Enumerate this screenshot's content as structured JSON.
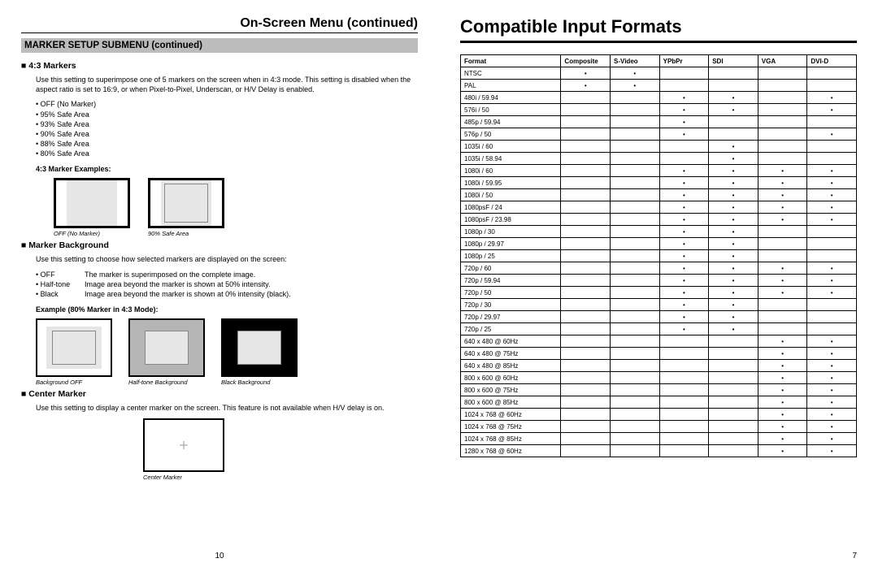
{
  "left": {
    "heading": "On-Screen Menu (continued)",
    "grey_bar": "MARKER SETUP SUBMENU (continued)",
    "s1": {
      "title": "4:3 Markers",
      "desc": "Use this setting to superimpose one of 5 markers on the screen when in 4:3 mode. This setting is disabled when the aspect ratio is set to 16:9, or when Pixel-to-Pixel, Underscan, or H/V Delay is enabled.",
      "opts": [
        "OFF (No Marker)",
        "95% Safe Area",
        "93% Safe Area",
        "90% Safe Area",
        "88% Safe Area",
        "80% Safe Area"
      ],
      "ex_label": "4:3 Marker Examples:",
      "ex": [
        "OFF (No Marker)",
        "90% Safe Area"
      ]
    },
    "s2": {
      "title": "Marker Background",
      "desc": "Use this setting to choose how selected markers are displayed on the screen:",
      "defs": [
        {
          "k": "OFF",
          "v": "The marker is superimposed on the complete image."
        },
        {
          "k": "Half-tone",
          "v": "Image area beyond the marker is shown at 50% intensity."
        },
        {
          "k": "Black",
          "v": "Image area beyond the marker is shown at 0% intensity (black)."
        }
      ],
      "ex_label": "Example (80% Marker in 4:3 Mode):",
      "ex": [
        "Background OFF",
        "Half-tone Background",
        "Black Background"
      ]
    },
    "s3": {
      "title": "Center Marker",
      "desc": "Use this setting to display a center marker on the screen. This feature is not available when H/V delay is on.",
      "cap": "Center Marker"
    },
    "page": "10"
  },
  "right": {
    "heading": "Compatible Input Formats",
    "headers": [
      "Format",
      "Composite",
      "S-Video",
      "YPbPr",
      "SDI",
      "VGA",
      "DVI-D"
    ],
    "rows": [
      {
        "f": "NTSC",
        "c": [
          1,
          1,
          0,
          0,
          0,
          0
        ]
      },
      {
        "f": "PAL",
        "c": [
          1,
          1,
          0,
          0,
          0,
          0
        ]
      },
      {
        "f": "480i / 59.94",
        "c": [
          0,
          0,
          1,
          1,
          0,
          1
        ]
      },
      {
        "f": "576i / 50",
        "c": [
          0,
          0,
          1,
          1,
          0,
          1
        ]
      },
      {
        "f": "485p / 59.94",
        "c": [
          0,
          0,
          1,
          0,
          0,
          0
        ]
      },
      {
        "f": "576p / 50",
        "c": [
          0,
          0,
          1,
          0,
          0,
          1
        ]
      },
      {
        "f": "1035i / 60",
        "c": [
          0,
          0,
          0,
          1,
          0,
          0
        ]
      },
      {
        "f": "1035i / 58.94",
        "c": [
          0,
          0,
          0,
          1,
          0,
          0
        ]
      },
      {
        "f": "1080i / 60",
        "c": [
          0,
          0,
          1,
          1,
          1,
          1
        ]
      },
      {
        "f": "1080i / 59.95",
        "c": [
          0,
          0,
          1,
          1,
          1,
          1
        ]
      },
      {
        "f": "1080i / 50",
        "c": [
          0,
          0,
          1,
          1,
          1,
          1
        ]
      },
      {
        "f": "1080psF / 24",
        "c": [
          0,
          0,
          1,
          1,
          1,
          1
        ]
      },
      {
        "f": "1080psF / 23.98",
        "c": [
          0,
          0,
          1,
          1,
          1,
          1
        ]
      },
      {
        "f": "1080p / 30",
        "c": [
          0,
          0,
          1,
          1,
          0,
          0
        ]
      },
      {
        "f": "1080p / 29.97",
        "c": [
          0,
          0,
          1,
          1,
          0,
          0
        ]
      },
      {
        "f": "1080p / 25",
        "c": [
          0,
          0,
          1,
          1,
          0,
          0
        ]
      },
      {
        "f": "720p / 60",
        "c": [
          0,
          0,
          1,
          1,
          1,
          1
        ]
      },
      {
        "f": "720p / 59.94",
        "c": [
          0,
          0,
          1,
          1,
          1,
          1
        ]
      },
      {
        "f": "720p / 50",
        "c": [
          0,
          0,
          1,
          1,
          1,
          1
        ]
      },
      {
        "f": "720p / 30",
        "c": [
          0,
          0,
          1,
          1,
          0,
          0
        ]
      },
      {
        "f": "720p / 29.97",
        "c": [
          0,
          0,
          1,
          1,
          0,
          0
        ]
      },
      {
        "f": "720p / 25",
        "c": [
          0,
          0,
          1,
          1,
          0,
          0
        ]
      },
      {
        "f": "640 x 480 @ 60Hz",
        "c": [
          0,
          0,
          0,
          0,
          1,
          1
        ]
      },
      {
        "f": "640 x 480 @ 75Hz",
        "c": [
          0,
          0,
          0,
          0,
          1,
          1
        ]
      },
      {
        "f": "640 x 480 @ 85Hz",
        "c": [
          0,
          0,
          0,
          0,
          1,
          1
        ]
      },
      {
        "f": "800 x 600 @ 60Hz",
        "c": [
          0,
          0,
          0,
          0,
          1,
          1
        ]
      },
      {
        "f": "800 x 600 @ 75Hz",
        "c": [
          0,
          0,
          0,
          0,
          1,
          1
        ]
      },
      {
        "f": "800 x 600 @ 85Hz",
        "c": [
          0,
          0,
          0,
          0,
          1,
          1
        ]
      },
      {
        "f": "1024 x 768 @ 60Hz",
        "c": [
          0,
          0,
          0,
          0,
          1,
          1
        ]
      },
      {
        "f": "1024 x 768 @ 75Hz",
        "c": [
          0,
          0,
          0,
          0,
          1,
          1
        ]
      },
      {
        "f": "1024 x 768 @ 85Hz",
        "c": [
          0,
          0,
          0,
          0,
          1,
          1
        ]
      },
      {
        "f": "1280 x 768 @ 60Hz",
        "c": [
          0,
          0,
          0,
          0,
          1,
          1
        ]
      }
    ],
    "page": "7"
  }
}
